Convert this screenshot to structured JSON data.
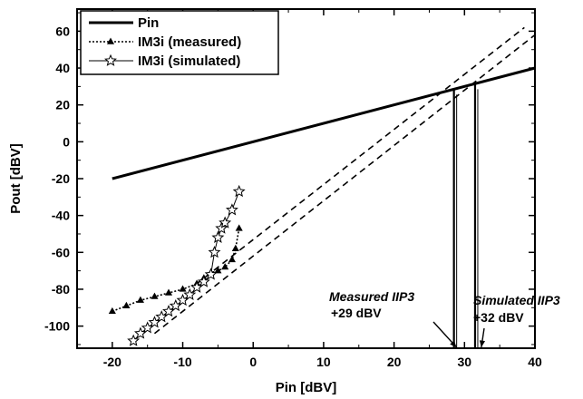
{
  "chart_data": {
    "type": "line",
    "title": "",
    "xlabel": "Pin [dBV]",
    "ylabel": "Pout [dBV]",
    "xlim": [
      -25,
      40
    ],
    "ylim": [
      -112,
      72
    ],
    "xticks": [
      -20,
      -10,
      0,
      10,
      20,
      30,
      40
    ],
    "yticks": [
      -100,
      -80,
      -60,
      -40,
      -20,
      0,
      20,
      40,
      60
    ],
    "grid": false,
    "legend_position": "top-left",
    "series": [
      {
        "name": "Pin",
        "style": "solid-thick",
        "color": "#000000",
        "x": [
          -20,
          40
        ],
        "y": [
          -20,
          40
        ]
      },
      {
        "name": "IM3i (measured)",
        "style": "dotted-triangle",
        "color": "#000000",
        "x": [
          -20,
          -18,
          -16,
          -14,
          -12,
          -10,
          -8,
          -7,
          -6,
          -5,
          -4,
          -3,
          -2.5,
          -2
        ],
        "y": [
          -92,
          -89,
          -86,
          -84,
          -82,
          -80,
          -77,
          -74,
          -71,
          -70,
          -68,
          -64,
          -58,
          -47
        ]
      },
      {
        "name": "IM3i (simulated)",
        "style": "thin-star",
        "color": "#000000",
        "x": [
          -17,
          -16,
          -15,
          -14,
          -13,
          -12,
          -11,
          -10,
          -9,
          -8,
          -7,
          -6,
          -5.5,
          -5,
          -4.5,
          -4,
          -3,
          -2
        ],
        "y": [
          -108,
          -104,
          -101,
          -98,
          -95,
          -92,
          -89,
          -86,
          -83,
          -79,
          -76,
          -72,
          -60,
          -52,
          -47,
          -44,
          -37,
          -27
        ]
      }
    ],
    "extrapolations": [
      {
        "x": [
          -8,
          38.5
        ],
        "y": [
          -77,
          62
        ]
      },
      {
        "x": [
          -14,
          40
        ],
        "y": [
          -104,
          58
        ]
      }
    ],
    "annotations": [
      {
        "line1": "Measured IIP3",
        "line2": "+29 dBV",
        "x": 29
      },
      {
        "line1": "Simulated IIP3",
        "line2": "+32 dBV",
        "x": 32
      }
    ],
    "ip_marks": [
      {
        "x": 28.5,
        "y": 28.5
      },
      {
        "x": 31.5,
        "y": 31.5
      }
    ]
  }
}
